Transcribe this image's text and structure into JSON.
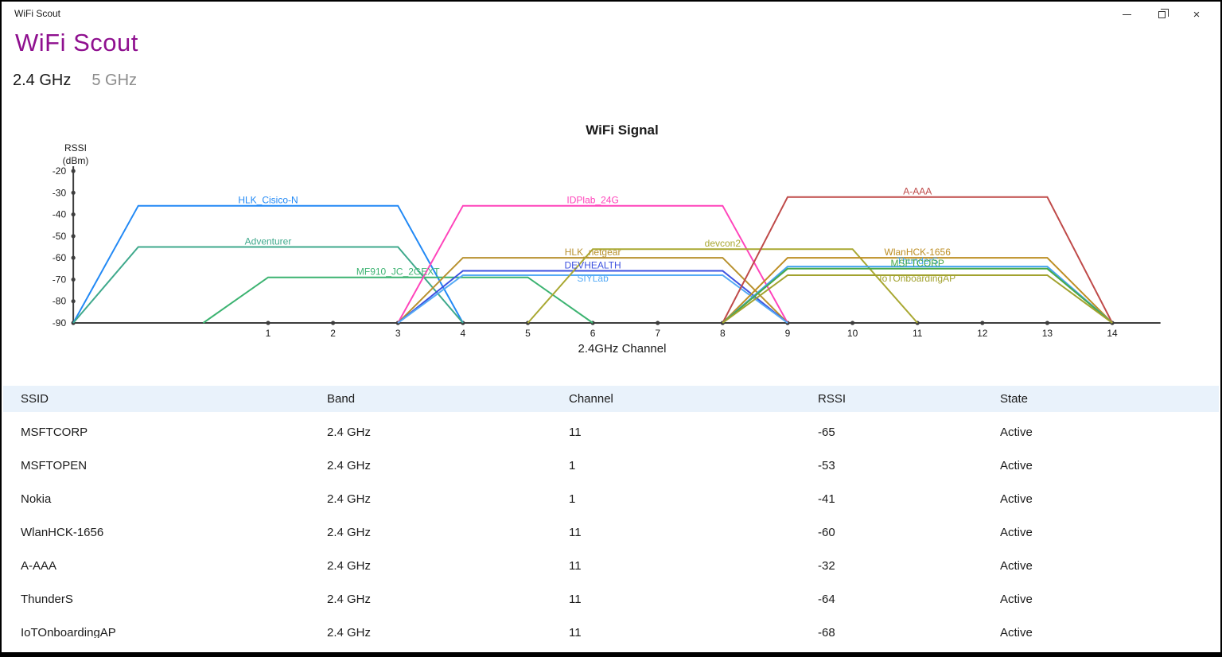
{
  "window": {
    "title": "WiFi Scout"
  },
  "header": {
    "app_title": "WiFi Scout",
    "accent_color": "#8f108f"
  },
  "tabs": [
    {
      "label": "2.4 GHz",
      "selected": true
    },
    {
      "label": "5 GHz",
      "selected": false
    }
  ],
  "chart_data": {
    "type": "line",
    "title": "WiFi Signal",
    "xlabel": "2.4GHz Channel",
    "ylabel_lines": [
      "RSSI",
      "(dBm)"
    ],
    "x_ticks": [
      1,
      2,
      3,
      4,
      5,
      6,
      7,
      8,
      9,
      10,
      11,
      12,
      13,
      14
    ],
    "y_ticks": [
      -20,
      -30,
      -40,
      -50,
      -60,
      -70,
      -80,
      -90
    ],
    "x_range_channels": [
      -2,
      15
    ],
    "y_range_dbm": [
      -20,
      -90
    ],
    "grid": false,
    "shape_note": "each AP drawn as trapezoid: feet at channel±3 (RSSI -90), plateau at channel±2 (peak RSSI)",
    "axis_color": "#3d3d3d",
    "series": [
      {
        "name": "HLK_Cisico-N",
        "channel": 1,
        "rssi": -36,
        "color": "#2289f5"
      },
      {
        "name": "Adventurer",
        "channel": 1,
        "rssi": -55,
        "color": "#3fa98c"
      },
      {
        "name": "MF910_JC_2GEXT",
        "channel": 3,
        "rssi": -69,
        "color": "#3cb371"
      },
      {
        "name": "IDPlab_24G",
        "channel": 6,
        "rssi": -36,
        "color": "#ff44bb"
      },
      {
        "name": "HLK_netgear",
        "channel": 6,
        "rssi": -60,
        "color": "#b8912f"
      },
      {
        "name": "DEVHEALTH",
        "channel": 6,
        "rssi": -66,
        "color": "#3d52e0"
      },
      {
        "name": "SIYLab",
        "channel": 6,
        "rssi": -68,
        "color": "#55aaf5",
        "label_dy": 11
      },
      {
        "name": "devcon2",
        "channel": 8,
        "rssi": -56,
        "color": "#a9a832"
      },
      {
        "name": "A-AAA",
        "channel": 11,
        "rssi": -32,
        "color": "#bf4a49"
      },
      {
        "name": "WlanHCK-1656",
        "channel": 11,
        "rssi": -60,
        "color": "#bd8e23"
      },
      {
        "name": "ThunderS",
        "channel": 11,
        "rssi": -64,
        "color": "#44a5ee"
      },
      {
        "name": "MSFTCORP",
        "channel": 11,
        "rssi": -65,
        "color": "#49a949"
      },
      {
        "name": "IoTOnboardingAP",
        "channel": 11,
        "rssi": -68,
        "color": "#a2a22e",
        "label_dy": 11
      }
    ]
  },
  "table": {
    "columns": [
      "SSID",
      "Band",
      "Channel",
      "RSSI",
      "State"
    ],
    "rows": [
      {
        "ssid": "MSFTCORP",
        "band": "2.4 GHz",
        "channel": "11",
        "rssi": "-65",
        "state": "Active"
      },
      {
        "ssid": "MSFTOPEN",
        "band": "2.4 GHz",
        "channel": "1",
        "rssi": "-53",
        "state": "Active"
      },
      {
        "ssid": "Nokia",
        "band": "2.4 GHz",
        "channel": "1",
        "rssi": "-41",
        "state": "Active"
      },
      {
        "ssid": "WlanHCK-1656",
        "band": "2.4 GHz",
        "channel": "11",
        "rssi": "-60",
        "state": "Active"
      },
      {
        "ssid": "A-AAA",
        "band": "2.4 GHz",
        "channel": "11",
        "rssi": "-32",
        "state": "Active"
      },
      {
        "ssid": "ThunderS",
        "band": "2.4 GHz",
        "channel": "11",
        "rssi": "-64",
        "state": "Active"
      },
      {
        "ssid": "IoTOnboardingAP",
        "band": "2.4 GHz",
        "channel": "11",
        "rssi": "-68",
        "state": "Active"
      }
    ]
  }
}
